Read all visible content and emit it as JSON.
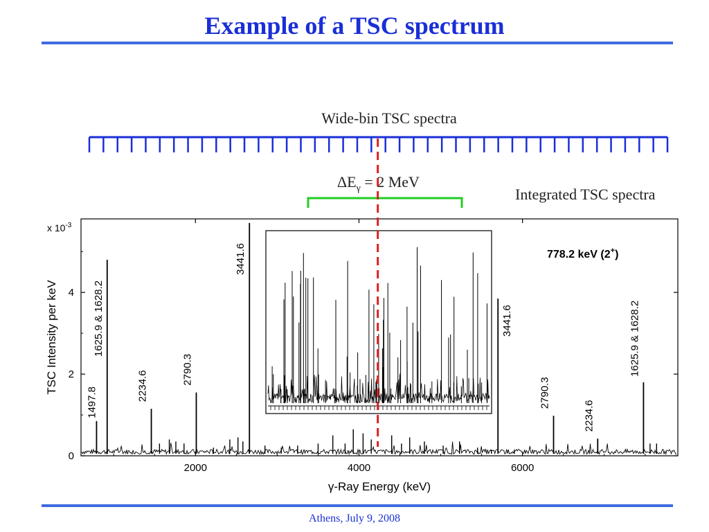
{
  "slide": {
    "title": "Example of a TSC spectrum",
    "footer": "Athens, July 9, 2008"
  },
  "annotations": {
    "wide_bin_label": "Wide-bin TSC spectra",
    "integrated_label": "Integrated TSC spectra",
    "delta_prefix": "ΔE",
    "delta_sub": "γ",
    "delta_suffix": " = 2 MeV",
    "wide_bin_count": 42
  },
  "colors": {
    "title": "#1a2fd6",
    "rule": "#3f6be0",
    "comb": "#1a2fd6",
    "bracket": "#22cc22",
    "dashed_line": "#e02020"
  },
  "chart_data": {
    "type": "line",
    "xlabel": "γ-Ray Energy (keV)",
    "ylabel": "TSC Intensity per keV",
    "yscale_label_prefix": "x 10",
    "yscale_label_exp": "-3",
    "xlim": [
      600,
      7900
    ],
    "ylim": [
      0,
      5.8
    ],
    "xticks": [
      2000,
      4000,
      6000
    ],
    "yticks": [
      0,
      2,
      4
    ],
    "legend_title": "778.2 keV  (2",
    "legend_sup": "+",
    "legend_close": ")",
    "dashed_line_x": 4230,
    "peaks": [
      {
        "x": 790,
        "y": 0.85,
        "label": "1497.8"
      },
      {
        "x": 920,
        "y": 4.8,
        "label": "1625.9 & 1628.2"
      },
      {
        "x": 1460,
        "y": 1.15,
        "label": "2234.6"
      },
      {
        "x": 2010,
        "y": 1.55,
        "label": "2790.3"
      },
      {
        "x": 2660,
        "y": 5.7,
        "label": "3441.6"
      },
      {
        "x": 5700,
        "y": 3.85,
        "label": "3441.6"
      },
      {
        "x": 6380,
        "y": 0.98,
        "label": "2790.3"
      },
      {
        "x": 6920,
        "y": 0.42,
        "label": "2234.6"
      },
      {
        "x": 7480,
        "y": 1.8,
        "label": "1625.9 & 1628.2"
      }
    ],
    "minor_peaks": [
      {
        "x": 1560,
        "y": 0.3
      },
      {
        "x": 1680,
        "y": 0.4
      },
      {
        "x": 1760,
        "y": 0.35
      },
      {
        "x": 1860,
        "y": 0.3
      },
      {
        "x": 2220,
        "y": 0.2
      },
      {
        "x": 2420,
        "y": 0.4
      },
      {
        "x": 2520,
        "y": 0.45
      },
      {
        "x": 2580,
        "y": 0.35
      },
      {
        "x": 2850,
        "y": 0.25
      },
      {
        "x": 3050,
        "y": 0.2
      },
      {
        "x": 3250,
        "y": 0.25
      },
      {
        "x": 3500,
        "y": 0.3
      },
      {
        "x": 3680,
        "y": 0.5
      },
      {
        "x": 3830,
        "y": 0.3
      },
      {
        "x": 3930,
        "y": 0.65
      },
      {
        "x": 4050,
        "y": 0.55
      },
      {
        "x": 4150,
        "y": 0.4
      },
      {
        "x": 4400,
        "y": 0.5
      },
      {
        "x": 4520,
        "y": 0.3
      },
      {
        "x": 4620,
        "y": 0.45
      },
      {
        "x": 4800,
        "y": 0.35
      },
      {
        "x": 5030,
        "y": 0.25
      },
      {
        "x": 5230,
        "y": 0.35
      },
      {
        "x": 5450,
        "y": 0.2
      },
      {
        "x": 5620,
        "y": 0.15
      },
      {
        "x": 5900,
        "y": 0.15
      },
      {
        "x": 7560,
        "y": 0.3
      },
      {
        "x": 7640,
        "y": 0.3
      }
    ]
  }
}
